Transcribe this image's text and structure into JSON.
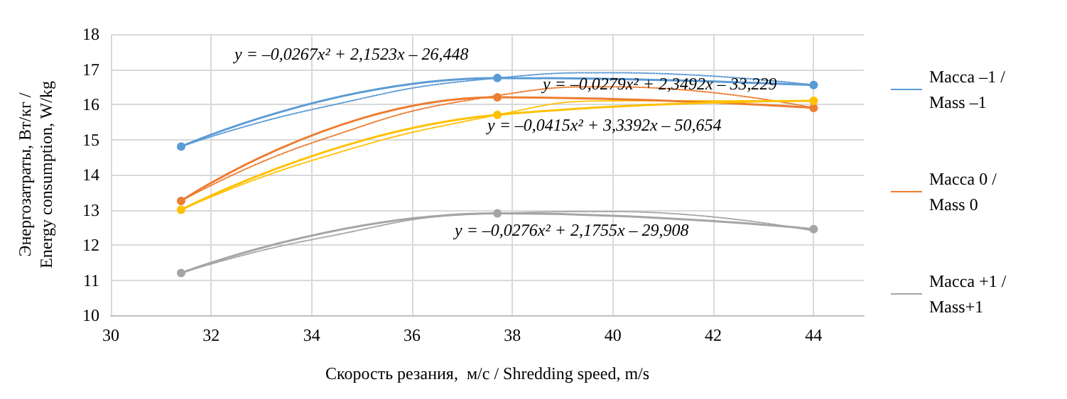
{
  "chart_data": {
    "type": "line",
    "xlabel": "Скорость резания,  м/с / Shredding speed, m/s",
    "ylabel": "Энергозатраты, Вт/кг / Energy consumption, W/kg",
    "x": [
      31.4,
      37.7,
      44
    ],
    "series": [
      {
        "name": "Масса –1 / Mass –1",
        "color": "#5b9bd5",
        "values": [
          14.8,
          16.75,
          16.55
        ]
      },
      {
        "name": "Масса 0 / Mass 0",
        "color": "#ed7d31",
        "values": [
          13.25,
          16.2,
          15.9
        ]
      },
      {
        "color": "#ffc000",
        "values": [
          13.0,
          15.7,
          16.1
        ]
      },
      {
        "name": "Масса +1 / Mass+1",
        "color": "#a5a5a5",
        "values": [
          11.2,
          12.9,
          12.45
        ]
      },
      {
        "color": "#5b9bd5",
        "line_style": "dotted",
        "marker": "none",
        "x": [
          31.4,
          34,
          37.7,
          40,
          44
        ],
        "values": [
          14.8,
          15.85,
          16.75,
          16.9,
          16.55
        ]
      },
      {
        "color": "#ed7d31",
        "line_style": "dotted",
        "marker": "none",
        "x": [
          31.4,
          34,
          37.7,
          40,
          44
        ],
        "values": [
          13.25,
          14.9,
          16.25,
          16.5,
          15.9
        ]
      },
      {
        "color": "#ffc000",
        "line_style": "dotted",
        "marker": "none",
        "x": [
          31.4,
          34,
          37.7,
          40,
          44
        ],
        "values": [
          13.0,
          14.4,
          15.7,
          16.1,
          16.1
        ]
      },
      {
        "color": "#a5a5a5",
        "line_style": "dotted",
        "marker": "none",
        "x": [
          31.4,
          34,
          37.7,
          40,
          44
        ],
        "values": [
          11.2,
          12.15,
          12.9,
          12.95,
          12.4
        ]
      }
    ],
    "annotations": [
      "y = –0,0267x² + 2,1523x – 26,448",
      "y = –0,0279x² + 2,3492x – 33,229",
      "y = –0,0415x² + 3,3392x – 50,654",
      "y = –0,0276x² + 2,1755x – 29,908"
    ],
    "xlim": [
      30,
      45
    ],
    "xticks": [
      30,
      32,
      34,
      36,
      38,
      40,
      42,
      44
    ],
    "ylim": [
      10,
      18
    ],
    "yticks": [
      10,
      11,
      12,
      13,
      14,
      15,
      16,
      17,
      18
    ],
    "grid": true,
    "legend": "right",
    "marker": "circle",
    "line_style": "solid"
  }
}
